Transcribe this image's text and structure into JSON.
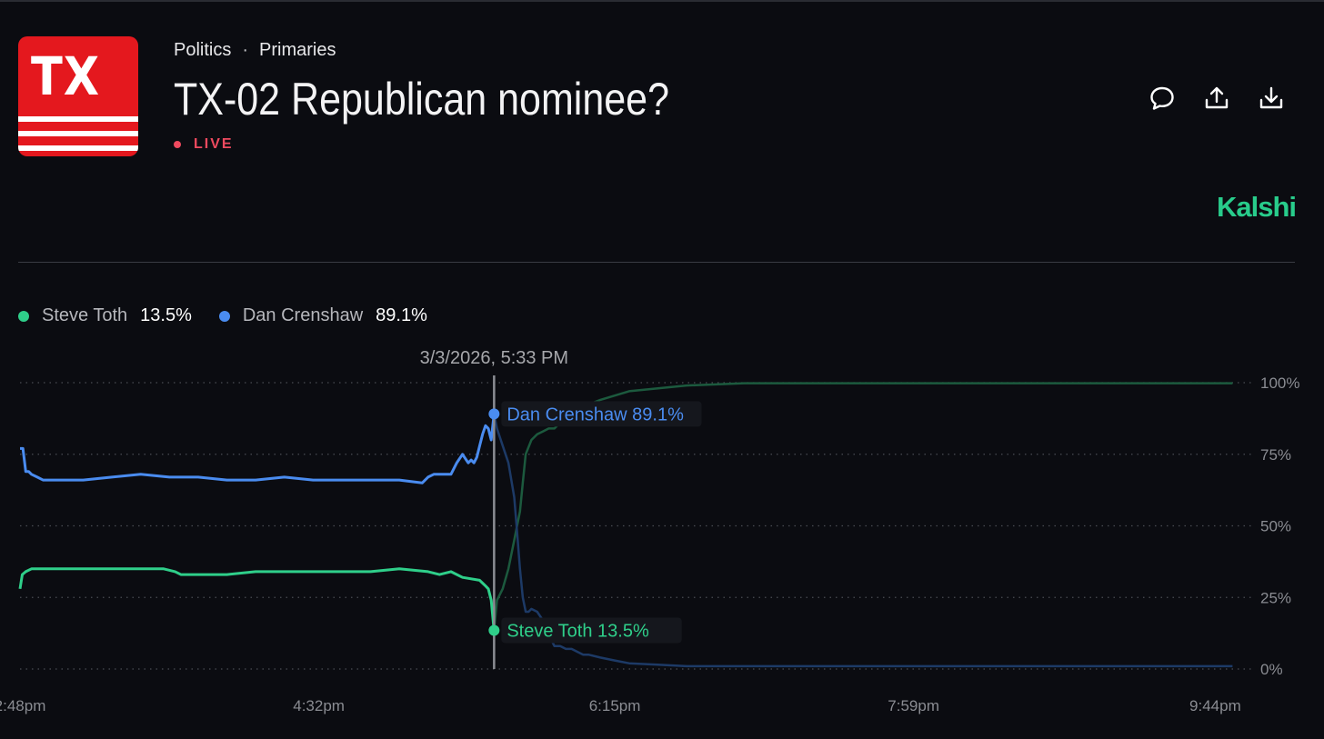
{
  "header": {
    "category": "Politics",
    "subcategory": "Primaries",
    "title": "TX-02 Republican nominee?",
    "status": "LIVE",
    "logo_text": "TX",
    "brand": "Kalshi"
  },
  "actions": [
    {
      "name": "comment-icon"
    },
    {
      "name": "share-icon"
    },
    {
      "name": "download-icon"
    }
  ],
  "legend": [
    {
      "name": "Steve Toth",
      "value": "13.5%",
      "color": "#2fcf8a"
    },
    {
      "name": "Dan Crenshaw",
      "value": "89.1%",
      "color": "#4a8cf0"
    }
  ],
  "chart_data": {
    "type": "line",
    "title": "",
    "xlabel": "",
    "ylabel": "",
    "ylim": [
      0,
      100
    ],
    "y_ticks": [
      "0%",
      "25%",
      "50%",
      "75%",
      "100%"
    ],
    "x_tick_labels": [
      "2:48pm",
      "4:32pm",
      "6:15pm",
      "7:59pm",
      "9:44pm"
    ],
    "x_ticks_minutes": [
      168,
      272,
      375,
      479,
      584
    ],
    "x_range_minutes": [
      168,
      594
    ],
    "grid": true,
    "hover": {
      "label": "3/3/2026, 5:33 PM",
      "x_minutes": 333,
      "tooltips": [
        {
          "series": "Dan Crenshaw",
          "text": "Dan Crenshaw 89.1%",
          "value": 89.1
        },
        {
          "series": "Steve Toth",
          "text": "Steve Toth 13.5%",
          "value": 13.5
        }
      ]
    },
    "series": [
      {
        "name": "Steve Toth",
        "color": "#2fcf8a",
        "faded_color": "#1c5a3e",
        "x": [
          168,
          168.8,
          170,
          172,
          174,
          180,
          190,
          200,
          210,
          218,
          222,
          224,
          226,
          230,
          240,
          250,
          260,
          270,
          278,
          282,
          290,
          300,
          310,
          314,
          318,
          322,
          328,
          329,
          330,
          331,
          332,
          333,
          334,
          336,
          338,
          340,
          341,
          342,
          343,
          344,
          346,
          348,
          350,
          352,
          354,
          356,
          358,
          360,
          365,
          370,
          380,
          390,
          400,
          420,
          450,
          500,
          550,
          590
        ],
        "values": [
          28,
          33,
          34,
          35,
          35,
          35,
          35,
          35,
          35,
          35,
          34,
          33,
          33,
          33,
          33,
          34,
          34,
          34,
          34,
          34,
          34,
          35,
          34,
          33,
          34,
          32,
          31,
          30,
          29,
          28,
          24,
          13.5,
          24,
          28,
          35,
          45,
          50,
          55,
          65,
          75,
          80,
          82,
          83,
          84,
          84,
          86,
          88,
          89,
          92,
          94,
          97,
          98,
          99,
          99.8,
          99.8,
          99.8,
          99.8,
          99.8
        ]
      },
      {
        "name": "Dan Crenshaw",
        "color": "#4a8cf0",
        "faded_color": "#1d3a66",
        "x": [
          168,
          169,
          170,
          171,
          172,
          174,
          176,
          180,
          190,
          200,
          210,
          220,
          230,
          240,
          250,
          260,
          270,
          280,
          290,
          300,
          308,
          310,
          312,
          318,
          320,
          322,
          324,
          325,
          326,
          327,
          328,
          329,
          330,
          331,
          332,
          333,
          334,
          336,
          338,
          340,
          341,
          342,
          343,
          344,
          345,
          346,
          348,
          350,
          352,
          354,
          356,
          358,
          360,
          362,
          364,
          366,
          370,
          375,
          380,
          390,
          400,
          420,
          450,
          500,
          550,
          590
        ],
        "values": [
          77,
          77,
          69,
          69,
          68,
          67,
          66,
          66,
          66,
          67,
          68,
          67,
          67,
          66,
          66,
          67,
          66,
          66,
          66,
          66,
          65,
          67,
          68,
          68,
          72,
          75,
          72,
          73,
          72,
          74,
          78,
          82,
          85,
          84,
          80,
          89.1,
          84,
          78,
          72,
          60,
          48,
          35,
          25,
          20,
          20,
          21,
          20,
          17,
          12,
          8,
          8,
          7,
          7,
          6,
          5,
          5,
          4,
          3,
          2,
          1.5,
          1,
          1,
          1,
          1,
          1,
          1
        ]
      }
    ]
  }
}
